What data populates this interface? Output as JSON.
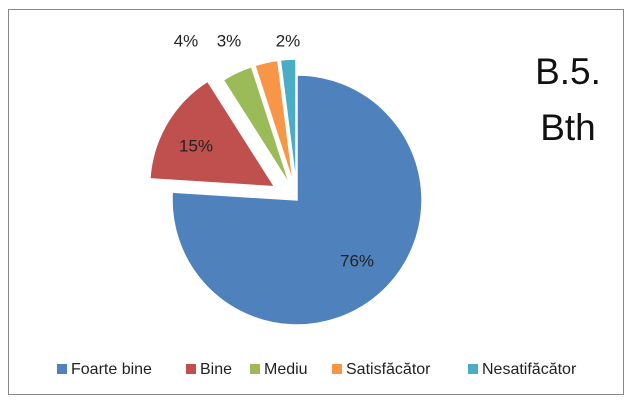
{
  "chart_data": {
    "type": "pie",
    "title": "B.5. Bth",
    "categories": [
      "Foarte bine",
      "Bine",
      "Mediu",
      "Satisfăcător",
      "Nesatifăcător"
    ],
    "values": [
      76,
      15,
      4,
      3,
      2
    ],
    "value_labels": [
      "76%",
      "15%",
      "4%",
      "3%",
      "2%"
    ],
    "colors": [
      "#4f81bd",
      "#c0504d",
      "#9bbb59",
      "#f79646",
      "#4bacc6"
    ],
    "legend": "bottom"
  }
}
